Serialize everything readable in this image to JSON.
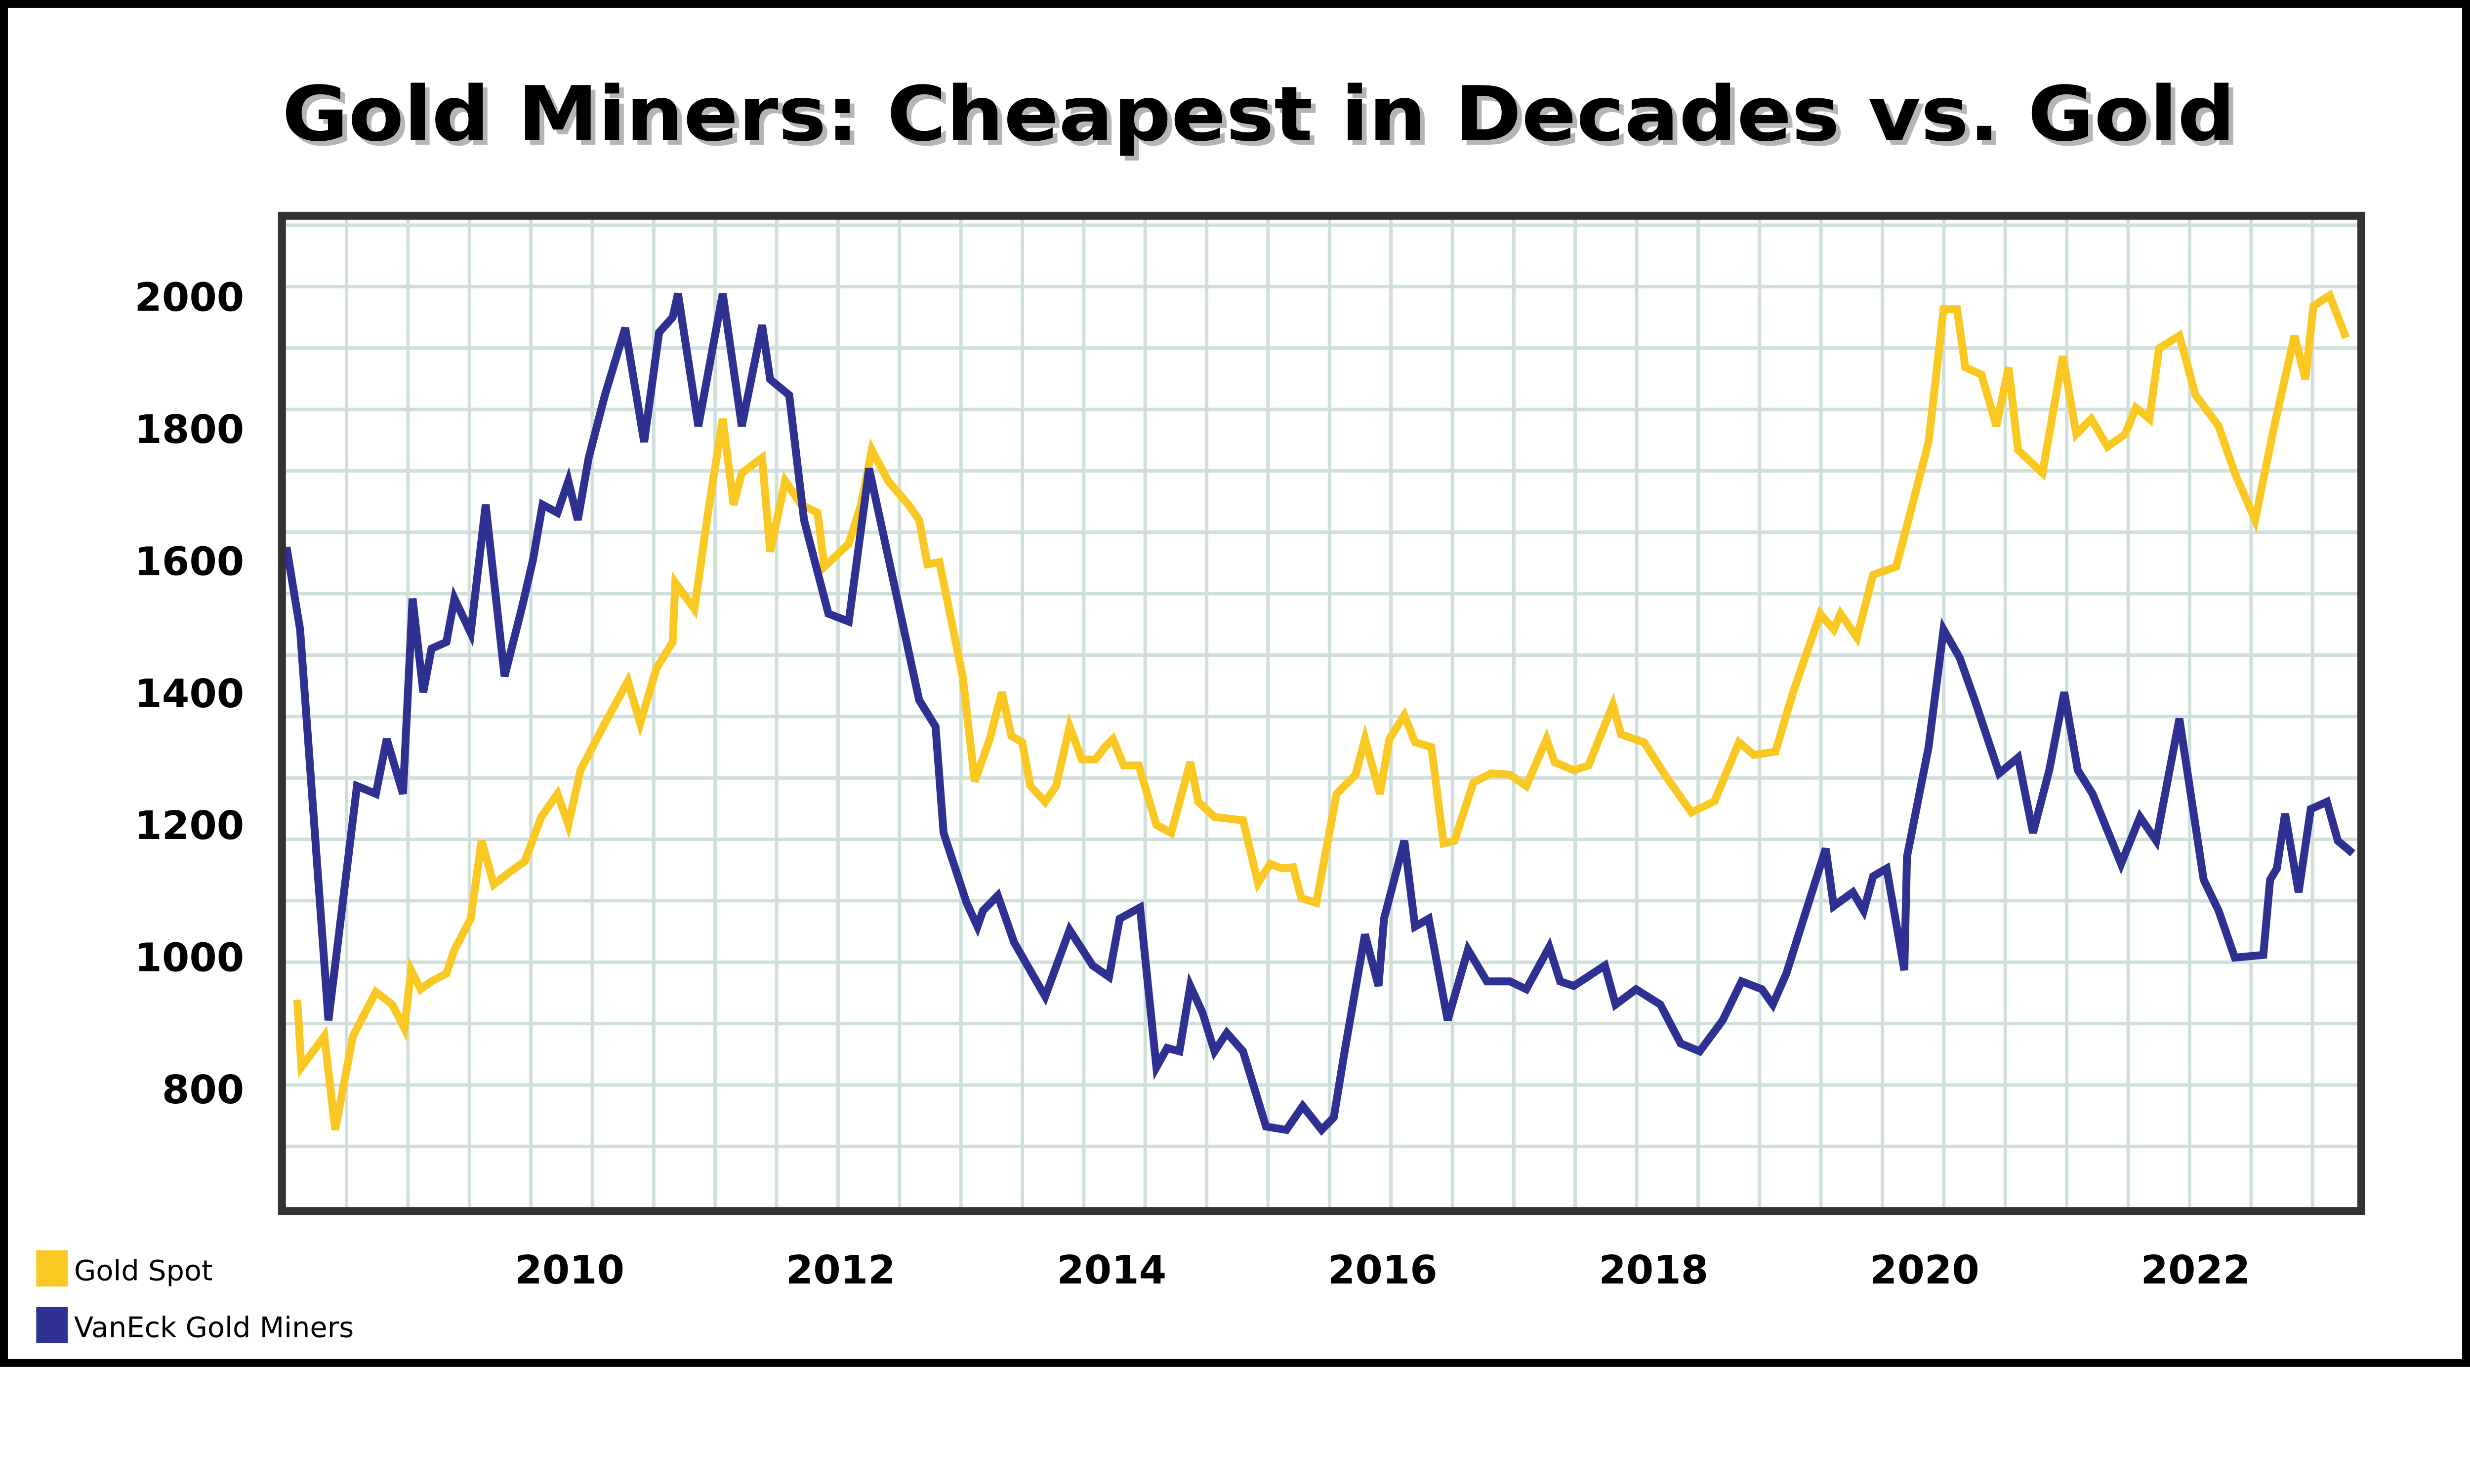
{
  "chart_data": {
    "type": "line",
    "title": "Gold Miners: Cheapest in Decades vs. Gold",
    "xlabel": "",
    "ylabel": "",
    "xlim": [
      2007.9,
      2023.2
    ],
    "ylim": [
      620,
      2118
    ],
    "grid": true,
    "legend_position": "bottom-left",
    "x_ticks": [
      2010,
      2012,
      2014,
      2016,
      2018,
      2020,
      2022
    ],
    "y_ticks": [
      800,
      1000,
      1200,
      1400,
      1600,
      1800,
      2000
    ],
    "colors": {
      "gold": "#f9c823",
      "miners": "#2e3192",
      "grid": "#cfe0db",
      "frame": "#333333"
    },
    "series": [
      {
        "name": "Gold Spot",
        "color": "#f9c823",
        "points": [
          [
            2007.99,
            935
          ],
          [
            2008.02,
            833
          ],
          [
            2008.19,
            880
          ],
          [
            2008.27,
            738
          ],
          [
            2008.4,
            880
          ],
          [
            2008.57,
            947
          ],
          [
            2008.69,
            928
          ],
          [
            2008.78,
            892
          ],
          [
            2008.83,
            980
          ],
          [
            2008.9,
            951
          ],
          [
            2008.98,
            963
          ],
          [
            2009.09,
            975
          ],
          [
            2009.15,
            1011
          ],
          [
            2009.27,
            1058
          ],
          [
            2009.35,
            1176
          ],
          [
            2009.44,
            1110
          ],
          [
            2009.56,
            1129
          ],
          [
            2009.67,
            1145
          ],
          [
            2009.79,
            1212
          ],
          [
            2009.91,
            1247
          ],
          [
            2009.99,
            1200
          ],
          [
            2010.08,
            1283
          ],
          [
            2010.26,
            1354
          ],
          [
            2010.43,
            1418
          ],
          [
            2010.52,
            1354
          ],
          [
            2010.64,
            1437
          ],
          [
            2010.76,
            1477
          ],
          [
            2010.78,
            1567
          ],
          [
            2010.92,
            1527
          ],
          [
            2011.03,
            1685
          ],
          [
            2011.13,
            1815
          ],
          [
            2011.21,
            1685
          ],
          [
            2011.27,
            1733
          ],
          [
            2011.42,
            1756
          ],
          [
            2011.48,
            1614
          ],
          [
            2011.59,
            1721
          ],
          [
            2011.71,
            1685
          ],
          [
            2011.83,
            1673
          ],
          [
            2011.88,
            1591
          ],
          [
            2012.06,
            1626
          ],
          [
            2012.15,
            1685
          ],
          [
            2012.23,
            1768
          ],
          [
            2012.35,
            1721
          ],
          [
            2012.5,
            1685
          ],
          [
            2012.58,
            1662
          ],
          [
            2012.64,
            1595
          ],
          [
            2012.73,
            1598
          ],
          [
            2012.9,
            1425
          ],
          [
            2012.99,
            1266
          ],
          [
            2013.1,
            1330
          ],
          [
            2013.19,
            1401
          ],
          [
            2013.26,
            1335
          ],
          [
            2013.34,
            1325
          ],
          [
            2013.4,
            1259
          ],
          [
            2013.51,
            1235
          ],
          [
            2013.59,
            1259
          ],
          [
            2013.69,
            1349
          ],
          [
            2013.78,
            1299
          ],
          [
            2013.88,
            1299
          ],
          [
            2013.95,
            1318
          ],
          [
            2014.01,
            1330
          ],
          [
            2014.09,
            1290
          ],
          [
            2014.2,
            1290
          ],
          [
            2014.33,
            1200
          ],
          [
            2014.44,
            1188
          ],
          [
            2014.58,
            1295
          ],
          [
            2014.64,
            1235
          ],
          [
            2014.76,
            1212
          ],
          [
            2014.97,
            1207
          ],
          [
            2015.08,
            1112
          ],
          [
            2015.17,
            1141
          ],
          [
            2015.26,
            1134
          ],
          [
            2015.34,
            1136
          ],
          [
            2015.4,
            1089
          ],
          [
            2015.51,
            1082
          ],
          [
            2015.66,
            1247
          ],
          [
            2015.8,
            1276
          ],
          [
            2015.87,
            1330
          ],
          [
            2015.98,
            1247
          ],
          [
            2016.05,
            1330
          ],
          [
            2016.16,
            1366
          ],
          [
            2016.24,
            1325
          ],
          [
            2016.36,
            1318
          ],
          [
            2016.45,
            1172
          ],
          [
            2016.53,
            1176
          ],
          [
            2016.67,
            1264
          ],
          [
            2016.8,
            1278
          ],
          [
            2016.94,
            1276
          ],
          [
            2017.06,
            1259
          ],
          [
            2017.21,
            1330
          ],
          [
            2017.27,
            1295
          ],
          [
            2017.41,
            1283
          ],
          [
            2017.52,
            1290
          ],
          [
            2017.7,
            1382
          ],
          [
            2017.76,
            1337
          ],
          [
            2017.93,
            1325
          ],
          [
            2018.1,
            1271
          ],
          [
            2018.28,
            1219
          ],
          [
            2018.45,
            1236
          ],
          [
            2018.63,
            1325
          ],
          [
            2018.74,
            1306
          ],
          [
            2018.9,
            1311
          ],
          [
            2019.03,
            1401
          ],
          [
            2019.15,
            1472
          ],
          [
            2019.23,
            1520
          ],
          [
            2019.33,
            1496
          ],
          [
            2019.38,
            1520
          ],
          [
            2019.5,
            1484
          ],
          [
            2019.62,
            1579
          ],
          [
            2019.79,
            1591
          ],
          [
            2019.85,
            1638
          ],
          [
            2020.03,
            1780
          ],
          [
            2020.14,
            1981
          ],
          [
            2020.24,
            1981
          ],
          [
            2020.3,
            1893
          ],
          [
            2020.42,
            1882
          ],
          [
            2020.53,
            1804
          ],
          [
            2020.62,
            1893
          ],
          [
            2020.69,
            1768
          ],
          [
            2020.87,
            1733
          ],
          [
            2021.02,
            1910
          ],
          [
            2021.12,
            1792
          ],
          [
            2021.23,
            1815
          ],
          [
            2021.35,
            1773
          ],
          [
            2021.48,
            1792
          ],
          [
            2021.56,
            1832
          ],
          [
            2021.66,
            1815
          ],
          [
            2021.73,
            1922
          ],
          [
            2021.88,
            1941
          ],
          [
            2022.0,
            1851
          ],
          [
            2022.17,
            1804
          ],
          [
            2022.29,
            1733
          ],
          [
            2022.44,
            1662
          ],
          [
            2022.58,
            1804
          ],
          [
            2022.73,
            1941
          ],
          [
            2022.81,
            1875
          ],
          [
            2022.87,
            1986
          ],
          [
            2022.99,
            2002
          ],
          [
            2023.11,
            1938
          ]
        ]
      },
      {
        "name": "VanEck Gold Miners",
        "color": "#2e3192",
        "points": [
          [
            2007.91,
            1621
          ],
          [
            2008.01,
            1496
          ],
          [
            2008.22,
            904
          ],
          [
            2008.43,
            1259
          ],
          [
            2008.57,
            1247
          ],
          [
            2008.65,
            1330
          ],
          [
            2008.77,
            1247
          ],
          [
            2008.84,
            1543
          ],
          [
            2008.92,
            1401
          ],
          [
            2008.98,
            1467
          ],
          [
            2009.09,
            1477
          ],
          [
            2009.15,
            1543
          ],
          [
            2009.27,
            1491
          ],
          [
            2009.38,
            1685
          ],
          [
            2009.52,
            1425
          ],
          [
            2009.65,
            1531
          ],
          [
            2009.73,
            1602
          ],
          [
            2009.8,
            1685
          ],
          [
            2009.91,
            1673
          ],
          [
            2009.99,
            1721
          ],
          [
            2010.06,
            1662
          ],
          [
            2010.14,
            1756
          ],
          [
            2010.26,
            1851
          ],
          [
            2010.41,
            1953
          ],
          [
            2010.55,
            1780
          ],
          [
            2010.66,
            1946
          ],
          [
            2010.76,
            1969
          ],
          [
            2010.8,
            2005
          ],
          [
            2010.95,
            1804
          ],
          [
            2011.13,
            2005
          ],
          [
            2011.27,
            1804
          ],
          [
            2011.42,
            1957
          ],
          [
            2011.48,
            1875
          ],
          [
            2011.62,
            1851
          ],
          [
            2011.73,
            1662
          ],
          [
            2011.91,
            1520
          ],
          [
            2012.06,
            1508
          ],
          [
            2012.21,
            1740
          ],
          [
            2012.38,
            1579
          ],
          [
            2012.58,
            1389
          ],
          [
            2012.7,
            1349
          ],
          [
            2012.76,
            1188
          ],
          [
            2012.93,
            1082
          ],
          [
            2013.01,
            1046
          ],
          [
            2013.05,
            1070
          ],
          [
            2013.16,
            1093
          ],
          [
            2013.28,
            1022
          ],
          [
            2013.51,
            940
          ],
          [
            2013.69,
            1041
          ],
          [
            2013.86,
            987
          ],
          [
            2013.98,
            970
          ],
          [
            2014.06,
            1058
          ],
          [
            2014.21,
            1075
          ],
          [
            2014.33,
            833
          ],
          [
            2014.41,
            862
          ],
          [
            2014.5,
            857
          ],
          [
            2014.58,
            956
          ],
          [
            2014.67,
            916
          ],
          [
            2014.76,
            857
          ],
          [
            2014.85,
            885
          ],
          [
            2014.97,
            857
          ],
          [
            2015.14,
            743
          ],
          [
            2015.29,
            738
          ],
          [
            2015.41,
            774
          ],
          [
            2015.55,
            738
          ],
          [
            2015.64,
            757
          ],
          [
            2015.72,
            857
          ],
          [
            2015.87,
            1034
          ],
          [
            2015.97,
            956
          ],
          [
            2016.01,
            1058
          ],
          [
            2016.16,
            1176
          ],
          [
            2016.24,
            1046
          ],
          [
            2016.34,
            1058
          ],
          [
            2016.48,
            904
          ],
          [
            2016.63,
            1011
          ],
          [
            2016.77,
            963
          ],
          [
            2016.94,
            963
          ],
          [
            2017.06,
            951
          ],
          [
            2017.23,
            1015
          ],
          [
            2017.31,
            963
          ],
          [
            2017.41,
            956
          ],
          [
            2017.64,
            987
          ],
          [
            2017.72,
            928
          ],
          [
            2017.87,
            951
          ],
          [
            2018.05,
            928
          ],
          [
            2018.2,
            869
          ],
          [
            2018.34,
            857
          ],
          [
            2018.51,
            904
          ],
          [
            2018.65,
            963
          ],
          [
            2018.8,
            951
          ],
          [
            2018.88,
            928
          ],
          [
            2018.98,
            975
          ],
          [
            2019.27,
            1164
          ],
          [
            2019.33,
            1077
          ],
          [
            2019.47,
            1098
          ],
          [
            2019.55,
            1070
          ],
          [
            2019.62,
            1122
          ],
          [
            2019.72,
            1134
          ],
          [
            2019.85,
            980
          ],
          [
            2019.87,
            1152
          ],
          [
            2020.03,
            1318
          ],
          [
            2020.14,
            1496
          ],
          [
            2020.26,
            1453
          ],
          [
            2020.37,
            1389
          ],
          [
            2020.55,
            1278
          ],
          [
            2020.69,
            1302
          ],
          [
            2020.8,
            1188
          ],
          [
            2020.92,
            1283
          ],
          [
            2021.03,
            1401
          ],
          [
            2021.13,
            1283
          ],
          [
            2021.24,
            1247
          ],
          [
            2021.45,
            1141
          ],
          [
            2021.59,
            1212
          ],
          [
            2021.71,
            1176
          ],
          [
            2021.88,
            1361
          ],
          [
            2022.06,
            1117
          ],
          [
            2022.17,
            1070
          ],
          [
            2022.29,
            999
          ],
          [
            2022.5,
            1003
          ],
          [
            2022.55,
            1117
          ],
          [
            2022.6,
            1134
          ],
          [
            2022.66,
            1217
          ],
          [
            2022.76,
            1098
          ],
          [
            2022.85,
            1224
          ],
          [
            2022.97,
            1235
          ],
          [
            2023.05,
            1176
          ],
          [
            2023.16,
            1157
          ]
        ]
      }
    ]
  }
}
